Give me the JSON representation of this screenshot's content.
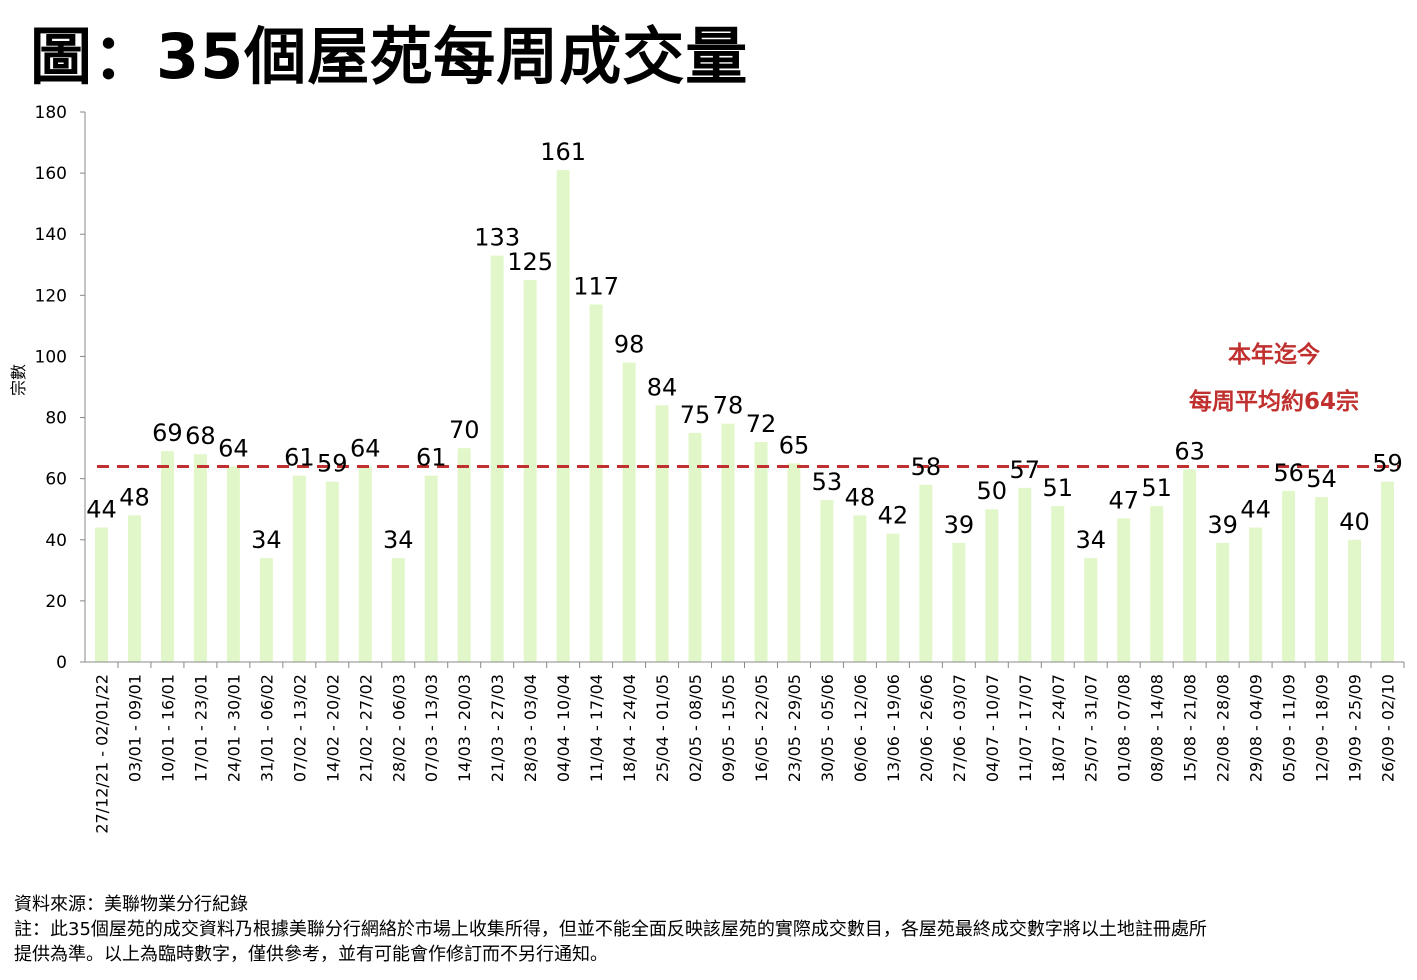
{
  "title": "圖：35個屋苑每周成交量",
  "footer": {
    "source": "資料來源：美聯物業分行紀錄",
    "note_line1": "註：此35個屋苑的成交資料乃根據美聯分行網絡於市場上收集所得，但並不能全面反映該屋苑的實際成交數目，各屋苑最終成交數字將以土地註冊處所",
    "note_line2": "提供為準。以上為臨時數字，僅供參考，並有可能會作修訂而不另行通知。"
  },
  "colors": {
    "bar": "#e2f7c9",
    "average_line": "#c0302f",
    "annotation": "#c0302f",
    "axis": "#888888"
  },
  "chart_data": {
    "type": "bar",
    "title": "",
    "xlabel": "",
    "ylabel": "宗數",
    "ylim": [
      0,
      180
    ],
    "yticks": [
      0,
      20,
      40,
      60,
      80,
      100,
      120,
      140,
      160,
      180
    ],
    "grid": false,
    "categories": [
      "27/12/21 - 02/01/22",
      "03/01 - 09/01",
      "10/01 - 16/01",
      "17/01 - 23/01",
      "24/01 - 30/01",
      "31/01 - 06/02",
      "07/02 - 13/02",
      "14/02 - 20/02",
      "21/02 - 27/02",
      "28/02 - 06/03",
      "07/03 - 13/03",
      "14/03 - 20/03",
      "21/03 - 27/03",
      "28/03 - 03/04",
      "04/04 - 10/04",
      "11/04 - 17/04",
      "18/04 - 24/04",
      "25/04 - 01/05",
      "02/05 - 08/05",
      "09/05 - 15/05",
      "16/05 - 22/05",
      "23/05 - 29/05",
      "30/05 - 05/06",
      "06/06 - 12/06",
      "13/06 - 19/06",
      "20/06 - 26/06",
      "27/06 - 03/07",
      "04/07 - 10/07",
      "11/07 - 17/07",
      "18/07 - 24/07",
      "25/07 - 31/07",
      "01/08 - 07/08",
      "08/08 - 14/08",
      "15/08 - 21/08",
      "22/08 - 28/08",
      "29/08 - 04/09",
      "05/09 - 11/09",
      "12/09 - 18/09",
      "19/09 - 25/09",
      "26/09 - 02/10"
    ],
    "values": [
      44,
      48,
      69,
      68,
      64,
      34,
      61,
      59,
      64,
      34,
      61,
      70,
      133,
      125,
      161,
      117,
      98,
      84,
      75,
      78,
      72,
      65,
      53,
      48,
      42,
      58,
      39,
      50,
      57,
      51,
      34,
      47,
      51,
      63,
      39,
      44,
      56,
      54,
      40,
      59
    ],
    "average_line": {
      "value": 64,
      "style": "dashed"
    },
    "annotation": {
      "line1": "本年迄今",
      "line2": "每周平均約64宗"
    }
  }
}
